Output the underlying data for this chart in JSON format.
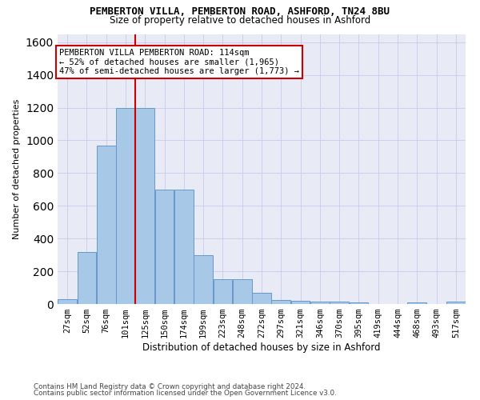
{
  "title1": "PEMBERTON VILLA, PEMBERTON ROAD, ASHFORD, TN24 8BU",
  "title2": "Size of property relative to detached houses in Ashford",
  "xlabel": "Distribution of detached houses by size in Ashford",
  "ylabel": "Number of detached properties",
  "footer1": "Contains HM Land Registry data © Crown copyright and database right 2024.",
  "footer2": "Contains public sector information licensed under the Open Government Licence v3.0.",
  "annotation_title": "PEMBERTON VILLA PEMBERTON ROAD: 114sqm",
  "annotation_line2": "← 52% of detached houses are smaller (1,965)",
  "annotation_line3": "47% of semi-detached houses are larger (1,773) →",
  "property_size": 114,
  "bar_values": [
    30,
    320,
    970,
    1200,
    1200,
    700,
    700,
    300,
    150,
    150,
    70,
    25,
    20,
    15,
    15,
    10,
    0,
    0,
    10,
    0,
    15
  ],
  "bin_labels": [
    "27sqm",
    "52sqm",
    "76sqm",
    "101sqm",
    "125sqm",
    "150sqm",
    "174sqm",
    "199sqm",
    "223sqm",
    "248sqm",
    "272sqm",
    "297sqm",
    "321sqm",
    "346sqm",
    "370sqm",
    "395sqm",
    "419sqm",
    "444sqm",
    "468sqm",
    "493sqm",
    "517sqm"
  ],
  "bin_left_edges": [
    14.5,
    39.5,
    64.5,
    89.5,
    114.5,
    139.5,
    164.5,
    189.5,
    214.5,
    239.5,
    264.5,
    289.5,
    314.5,
    339.5,
    364.5,
    389.5,
    414.5,
    439.5,
    464.5,
    489.5,
    514.5
  ],
  "bin_width": 25,
  "bar_color": "#a8c8e8",
  "bar_edge_color": "#6699cc",
  "vline_color": "#cc0000",
  "ylim": [
    0,
    1650
  ],
  "bg_color": "#e8eaf6",
  "grid_color": "#c8caec",
  "title_fontsize": 9,
  "subtitle_fontsize": 8.5,
  "ylabel_fontsize": 8,
  "xlabel_fontsize": 8.5,
  "tick_fontsize": 7.5,
  "footer_fontsize": 6.3,
  "annot_fontsize": 7.5
}
